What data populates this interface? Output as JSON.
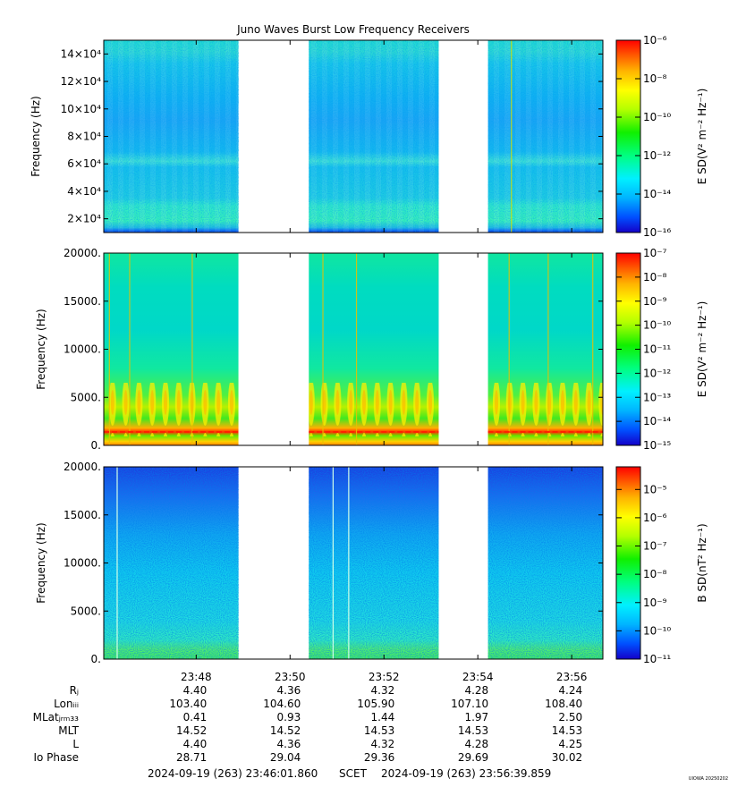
{
  "chart_data": {
    "type": "heatmap",
    "title": "Juno Waves Burst Low Frequency Receivers",
    "gap_color": "#ffffff",
    "data_segments_time": [
      [
        "23:46:01.860",
        "23:48:54"
      ],
      [
        "23:50:24",
        "23:53:10"
      ],
      [
        "23:54:13",
        "23:56:39.859"
      ]
    ],
    "panels": [
      {
        "id": "p1",
        "ylabel": "Frequency (Hz)",
        "ylim": [
          10000,
          150000
        ],
        "ytick_labels": [
          "2×10⁴",
          "4×10⁴",
          "6×10⁴",
          "8×10⁴",
          "10×10⁴",
          "12×10⁴",
          "14×10⁴"
        ],
        "ytick_values": [
          20000,
          40000,
          60000,
          80000,
          100000,
          120000,
          140000
        ],
        "colorbar": {
          "label": "E SD(V² m⁻² Hz⁻¹)",
          "scale": "log",
          "range": [
            -16,
            -6
          ],
          "tick_exponents": [
            -6,
            -8,
            -10,
            -12,
            -14,
            -16
          ],
          "tick_labels": [
            "10⁻⁶",
            "10⁻⁸",
            "10⁻¹⁰",
            "10⁻¹²",
            "10⁻¹⁴",
            "10⁻¹⁶"
          ]
        }
      },
      {
        "id": "p2",
        "ylabel": "Frequency (Hz)",
        "ylim": [
          0,
          20000
        ],
        "ytick_labels": [
          "0.",
          "5000.",
          "10000.",
          "15000.",
          "20000."
        ],
        "ytick_values": [
          0,
          5000,
          10000,
          15000,
          20000
        ],
        "colorbar": {
          "label": "E SD(V² m⁻² Hz⁻¹)",
          "scale": "log",
          "range": [
            -15,
            -7
          ],
          "tick_exponents": [
            -7,
            -8,
            -9,
            -10,
            -11,
            -12,
            -13,
            -14,
            -15
          ],
          "tick_labels": [
            "10⁻⁷",
            "10⁻⁸",
            "10⁻⁹",
            "10⁻¹⁰",
            "10⁻¹¹",
            "10⁻¹²",
            "10⁻¹³",
            "10⁻¹⁴",
            "10⁻¹⁵"
          ]
        }
      },
      {
        "id": "p3",
        "ylabel": "Frequency (Hz)",
        "ylim": [
          0,
          20000
        ],
        "ytick_labels": [
          "0.",
          "5000.",
          "10000.",
          "15000.",
          "20000."
        ],
        "ytick_values": [
          0,
          5000,
          10000,
          15000,
          20000
        ],
        "colorbar": {
          "label": "B SD(nT² Hz⁻¹)",
          "scale": "log",
          "range": [
            -11,
            -4.2
          ],
          "tick_exponents": [
            -5,
            -6,
            -7,
            -8,
            -9,
            -10,
            -11
          ],
          "tick_labels": [
            "10⁻⁵",
            "10⁻⁶",
            "10⁻⁷",
            "10⁻⁸",
            "10⁻⁹",
            "10⁻¹⁰",
            "10⁻¹¹"
          ]
        }
      }
    ],
    "x_axis": {
      "tick_labels": [
        "23:48",
        "23:50",
        "23:52",
        "23:54",
        "23:56"
      ],
      "rows": [
        {
          "label": "Rⱼ",
          "values": [
            "4.40",
            "4.36",
            "4.32",
            "4.28",
            "4.24"
          ]
        },
        {
          "label": "Lonᵢᵢᵢ",
          "values": [
            "103.40",
            "104.60",
            "105.90",
            "107.10",
            "108.40"
          ]
        },
        {
          "label": "MLatⱼᵣₘ₃₃",
          "values": [
            "0.41",
            "0.93",
            "1.44",
            "1.97",
            "2.50"
          ]
        },
        {
          "label": "MLT",
          "values": [
            "14.52",
            "14.52",
            "14.53",
            "14.53",
            "14.53"
          ]
        },
        {
          "label": "L",
          "values": [
            "4.40",
            "4.36",
            "4.32",
            "4.28",
            "4.25"
          ]
        },
        {
          "label": "Io Phase",
          "values": [
            "28.71",
            "29.04",
            "29.36",
            "29.69",
            "30.02"
          ]
        }
      ]
    },
    "footer": {
      "start": "2024-09-19 (263) 23:46:01.860",
      "scet": "SCET",
      "end": "2024-09-19 (263) 23:56:39.859"
    },
    "watermark": "UIOWA 20250202"
  }
}
